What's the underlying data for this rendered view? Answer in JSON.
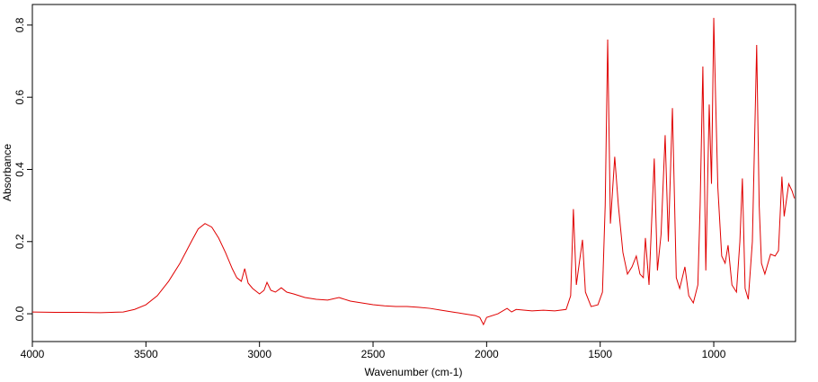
{
  "chart_data": {
    "type": "line",
    "xlabel": "Wavenumber (cm-1)",
    "ylabel": "Absorbance",
    "xlim": [
      4000,
      640
    ],
    "ylim": [
      -0.077,
      0.857
    ],
    "xticks": [
      4000,
      3500,
      3000,
      2500,
      2000,
      1500,
      1000
    ],
    "yticks": [
      {
        "value": 0,
        "label": "0.0"
      },
      0.2,
      0.4,
      0.6,
      0.8
    ],
    "x": [
      4000,
      3900,
      3800,
      3700,
      3600,
      3550,
      3500,
      3450,
      3400,
      3350,
      3300,
      3270,
      3240,
      3210,
      3180,
      3150,
      3120,
      3100,
      3080,
      3065,
      3050,
      3030,
      3000,
      2980,
      2967,
      2950,
      2930,
      2904,
      2880,
      2850,
      2800,
      2750,
      2700,
      2650,
      2600,
      2550,
      2500,
      2450,
      2400,
      2350,
      2300,
      2250,
      2200,
      2150,
      2100,
      2050,
      2030,
      2014,
      2000,
      1950,
      1910,
      1890,
      1870,
      1800,
      1750,
      1700,
      1650,
      1630,
      1618,
      1605,
      1590,
      1578,
      1565,
      1540,
      1510,
      1490,
      1478,
      1467,
      1455,
      1436,
      1420,
      1400,
      1380,
      1360,
      1341,
      1325,
      1310,
      1301,
      1285,
      1262,
      1248,
      1232,
      1214,
      1200,
      1182,
      1165,
      1150,
      1127,
      1110,
      1090,
      1070,
      1060,
      1048,
      1035,
      1020,
      1010,
      1000,
      992,
      982,
      965,
      950,
      937,
      920,
      900,
      885,
      874,
      862,
      848,
      830,
      811,
      800,
      790,
      775,
      750,
      730,
      715,
      700,
      690,
      670,
      655,
      645
    ],
    "series": [
      {
        "name": "Absorbance",
        "color": "#e00000",
        "values": [
          0.005,
          0.004,
          0.004,
          0.003,
          0.005,
          0.012,
          0.025,
          0.05,
          0.09,
          0.14,
          0.2,
          0.235,
          0.25,
          0.24,
          0.21,
          0.17,
          0.125,
          0.1,
          0.09,
          0.125,
          0.085,
          0.07,
          0.055,
          0.065,
          0.087,
          0.065,
          0.06,
          0.072,
          0.06,
          0.055,
          0.045,
          0.04,
          0.038,
          0.045,
          0.035,
          0.03,
          0.025,
          0.022,
          0.02,
          0.02,
          0.018,
          0.015,
          0.01,
          0.005,
          0.0,
          -0.005,
          -0.01,
          -0.03,
          -0.01,
          0.0,
          0.015,
          0.005,
          0.012,
          0.008,
          0.01,
          0.008,
          0.012,
          0.05,
          0.29,
          0.08,
          0.15,
          0.205,
          0.06,
          0.02,
          0.025,
          0.06,
          0.3,
          0.76,
          0.25,
          0.435,
          0.3,
          0.17,
          0.11,
          0.13,
          0.16,
          0.11,
          0.1,
          0.21,
          0.08,
          0.43,
          0.12,
          0.22,
          0.495,
          0.2,
          0.57,
          0.1,
          0.07,
          0.13,
          0.05,
          0.03,
          0.08,
          0.3,
          0.685,
          0.12,
          0.58,
          0.36,
          0.82,
          0.6,
          0.35,
          0.16,
          0.14,
          0.19,
          0.08,
          0.06,
          0.2,
          0.375,
          0.07,
          0.04,
          0.2,
          0.745,
          0.3,
          0.14,
          0.11,
          0.165,
          0.16,
          0.175,
          0.38,
          0.27,
          0.36,
          0.34,
          0.32
        ]
      }
    ]
  }
}
